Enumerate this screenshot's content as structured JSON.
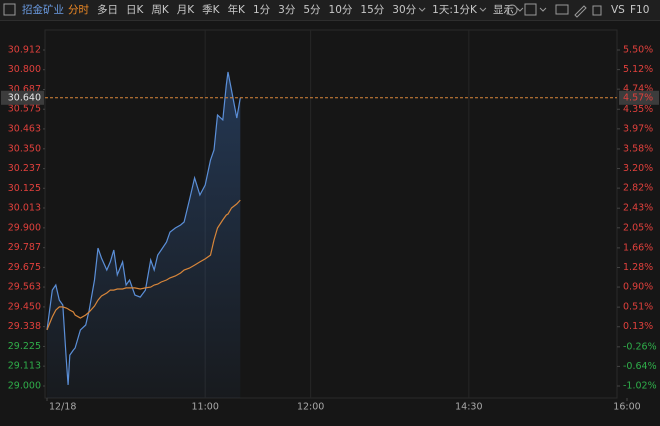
{
  "toolbar": {
    "symbol": "招金矿业",
    "tabs": [
      "分时",
      "多日",
      "日K",
      "周K",
      "月K",
      "季K",
      "年K",
      "1分",
      "3分",
      "5分",
      "10分",
      "15分",
      "30分",
      "1天:1分K",
      "显示"
    ],
    "active_tab": 0,
    "right_items": [
      "VS",
      "F10"
    ]
  },
  "chart_data": {
    "type": "line",
    "x": [
      0,
      3,
      5,
      7,
      9,
      11,
      12,
      13,
      15,
      16,
      19,
      22,
      24,
      27,
      29,
      31,
      34,
      36,
      38,
      40,
      43,
      45,
      47,
      50,
      53,
      56,
      59,
      61,
      63,
      65,
      68,
      70,
      73,
      76,
      78,
      81,
      84,
      87,
      90,
      93,
      95,
      97,
      100,
      102,
      103,
      105,
      108,
      110
    ],
    "series": [
      {
        "name": "price",
        "color": "#5b8fd8",
        "values": [
          29.319,
          29.546,
          29.575,
          29.489,
          29.461,
          29.148,
          29.006,
          29.176,
          29.205,
          29.216,
          29.319,
          29.347,
          29.432,
          29.603,
          29.785,
          29.728,
          29.66,
          29.706,
          29.774,
          29.632,
          29.706,
          29.575,
          29.603,
          29.518,
          29.506,
          29.546,
          29.717,
          29.66,
          29.745,
          29.774,
          29.819,
          29.876,
          29.899,
          29.916,
          29.933,
          30.058,
          30.184,
          30.087,
          30.144,
          30.286,
          30.343,
          30.542,
          30.514,
          30.713,
          30.787,
          30.684,
          30.525,
          30.64
        ]
      },
      {
        "name": "average",
        "color": "#d8863a",
        "values": [
          29.319,
          29.393,
          29.432,
          29.45,
          29.45,
          29.444,
          29.438,
          29.432,
          29.421,
          29.404,
          29.387,
          29.404,
          29.421,
          29.455,
          29.489,
          29.512,
          29.529,
          29.546,
          29.546,
          29.552,
          29.552,
          29.558,
          29.558,
          29.558,
          29.552,
          29.558,
          29.563,
          29.575,
          29.58,
          29.592,
          29.603,
          29.615,
          29.626,
          29.643,
          29.66,
          29.671,
          29.688,
          29.706,
          29.723,
          29.745,
          29.831,
          29.899,
          29.945,
          29.973,
          29.979,
          30.013,
          30.036,
          30.058
        ]
      }
    ],
    "xlim": [
      0,
      330
    ],
    "xticks": [
      {
        "value": 0,
        "label": "12/18"
      },
      {
        "value": 90,
        "label": "11:00"
      },
      {
        "value": 150,
        "label": "12:00"
      },
      {
        "value": 240,
        "label": "14:30"
      },
      {
        "value": 330,
        "label": "16:00"
      }
    ],
    "ylim": [
      29.0,
      30.912
    ],
    "yticks": [
      {
        "value": 30.912,
        "label": "30.912"
      },
      {
        "value": 30.8,
        "label": "30.800"
      },
      {
        "value": 30.687,
        "label": "30.687"
      },
      {
        "value": 30.575,
        "label": "30.575"
      },
      {
        "value": 30.463,
        "label": "30.463"
      },
      {
        "value": 30.35,
        "label": "30.350"
      },
      {
        "value": 30.237,
        "label": "30.237"
      },
      {
        "value": 30.125,
        "label": "30.125"
      },
      {
        "value": 30.013,
        "label": "30.013"
      },
      {
        "value": 29.9,
        "label": "29.900"
      },
      {
        "value": 29.787,
        "label": "29.787"
      },
      {
        "value": 29.675,
        "label": "29.675"
      },
      {
        "value": 29.563,
        "label": "29.563"
      },
      {
        "value": 29.45,
        "label": "29.450"
      },
      {
        "value": 29.338,
        "label": "29.338"
      },
      {
        "value": 29.225,
        "label": "29.225"
      },
      {
        "value": 29.113,
        "label": "29.113"
      },
      {
        "value": 29.0,
        "label": "29.000"
      }
    ],
    "y2lim": [
      -1.02,
      5.5
    ],
    "y2ticks": [
      {
        "value": 5.5,
        "label": "5.50%"
      },
      {
        "value": 5.12,
        "label": "5.12%"
      },
      {
        "value": 4.74,
        "label": "4.74%"
      },
      {
        "value": 4.35,
        "label": "4.35%"
      },
      {
        "value": 3.97,
        "label": "3.97%"
      },
      {
        "value": 3.58,
        "label": "3.58%"
      },
      {
        "value": 3.2,
        "label": "3.20%"
      },
      {
        "value": 2.82,
        "label": "2.82%"
      },
      {
        "value": 2.43,
        "label": "2.43%"
      },
      {
        "value": 2.05,
        "label": "2.05%"
      },
      {
        "value": 1.66,
        "label": "1.66%"
      },
      {
        "value": 1.28,
        "label": "1.28%"
      },
      {
        "value": 0.9,
        "label": "0.90%"
      },
      {
        "value": 0.51,
        "label": "0.51%"
      },
      {
        "value": 0.13,
        "label": "0.13%"
      },
      {
        "value": -0.26,
        "label": "-0.26%"
      },
      {
        "value": -0.64,
        "label": "-0.64%"
      },
      {
        "value": -1.02,
        "label": "-1.02%"
      }
    ],
    "last_price": {
      "value": 30.64,
      "label": "30.640",
      "change_label": "4.57%"
    },
    "up_color": "#e0403c",
    "down_color": "#2fae4a",
    "grid": true
  }
}
